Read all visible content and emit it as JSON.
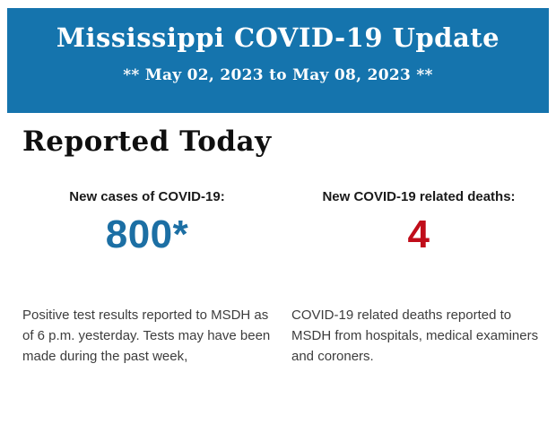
{
  "page": {
    "background_color": "#ffffff"
  },
  "banner": {
    "title": "Mississippi COVID-19 Update",
    "subtitle": "** May 02, 2023 to May 08, 2023 **",
    "background_color": "#1574ad",
    "text_color": "#ffffff"
  },
  "section": {
    "heading": "Reported Today"
  },
  "stats": [
    {
      "label": "New cases of COVID-19:",
      "value": "800*",
      "value_color": "#1c6fa4",
      "description": "Positive test results reported to MSDH as of 6 p.m. yesterday. Tests may have been made during the past week,"
    },
    {
      "label": "New COVID-19 related deaths:",
      "value": "4",
      "value_color": "#c00d1a",
      "description": "COVID-19 related deaths reported to MSDH from hospitals, medical examiners and coroners."
    }
  ]
}
